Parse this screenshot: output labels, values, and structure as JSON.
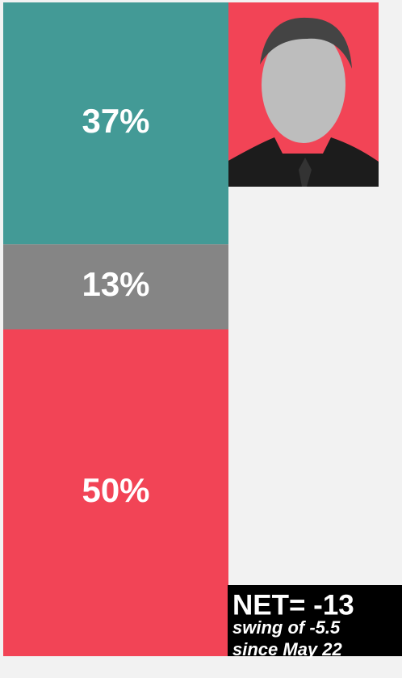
{
  "chart_data": {
    "type": "stacked-bar",
    "values": [
      37,
      13,
      50
    ],
    "value_labels": [
      "37%",
      "13%",
      "50%"
    ],
    "colors": [
      "#439a96",
      "#858585",
      "#f24456"
    ],
    "annotations": [
      "NET= -13",
      "swing of -5.5",
      "since May 22"
    ]
  }
}
